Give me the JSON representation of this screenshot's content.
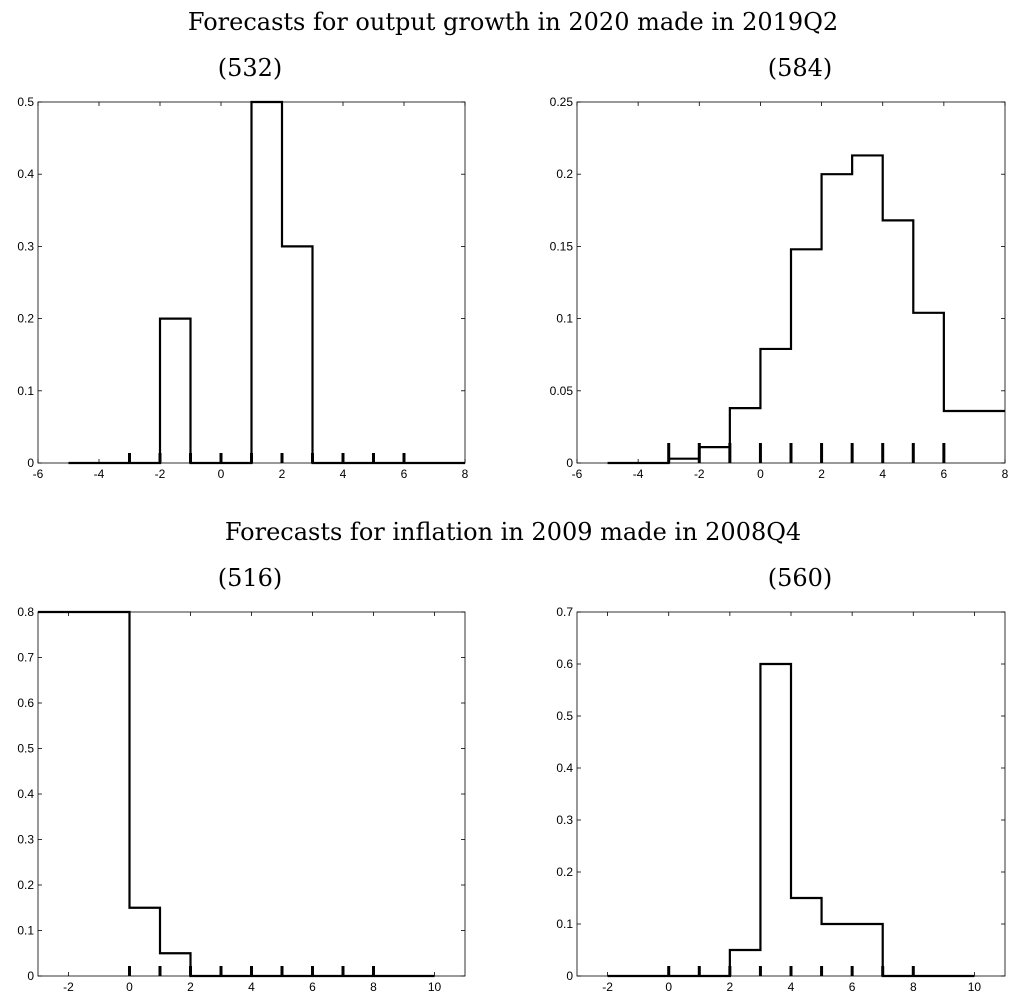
{
  "section_titles": [
    "Forecasts for output growth in 2020 made in 2019Q2",
    "Forecasts for inflation in 2009 made in 2008Q4"
  ],
  "chart_data": [
    {
      "type": "step",
      "panel_label": "(532)",
      "xlim": [
        -6,
        8
      ],
      "ylim": [
        0,
        0.5
      ],
      "xticks": [
        -6,
        -4,
        -2,
        0,
        2,
        4,
        6,
        8
      ],
      "xtick_labels": [
        "-6",
        "-4",
        "-2",
        "0",
        "2",
        "4",
        "6",
        "8"
      ],
      "yticks": [
        0,
        0.1,
        0.2,
        0.3,
        0.4,
        0.5
      ],
      "ytick_labels": [
        "0",
        "0.1",
        "0.2",
        "0.3",
        "0.4",
        "0.5"
      ],
      "bins": [
        {
          "x0": -5,
          "x1": -2,
          "y": 0
        },
        {
          "x0": -2,
          "x1": -1,
          "y": 0.2
        },
        {
          "x0": -1,
          "x1": 1,
          "y": 0
        },
        {
          "x0": 1,
          "x1": 2,
          "y": 0.5
        },
        {
          "x0": 2,
          "x1": 3,
          "y": 0.3
        },
        {
          "x0": 3,
          "x1": 8,
          "y": 0
        }
      ],
      "rug": [
        -3,
        -2,
        -1,
        0,
        1,
        2,
        3,
        4,
        5,
        6
      ]
    },
    {
      "type": "step",
      "panel_label": "(584)",
      "xlim": [
        -6,
        8
      ],
      "ylim": [
        0,
        0.25
      ],
      "xticks": [
        -6,
        -4,
        -2,
        0,
        2,
        4,
        6,
        8
      ],
      "xtick_labels": [
        "-6",
        "-4",
        "-2",
        "0",
        "2",
        "4",
        "6",
        "8"
      ],
      "yticks": [
        0,
        0.05,
        0.1,
        0.15,
        0.2,
        0.25
      ],
      "ytick_labels": [
        "0",
        "0.05",
        "0.1",
        "0.15",
        "0.2",
        "0.25"
      ],
      "bins": [
        {
          "x0": -5,
          "x1": -3,
          "y": 0
        },
        {
          "x0": -3,
          "x1": -2,
          "y": 0.003
        },
        {
          "x0": -2,
          "x1": -1,
          "y": 0.011
        },
        {
          "x0": -1,
          "x1": 0,
          "y": 0.038
        },
        {
          "x0": 0,
          "x1": 1,
          "y": 0.079
        },
        {
          "x0": 1,
          "x1": 2,
          "y": 0.148
        },
        {
          "x0": 2,
          "x1": 3,
          "y": 0.2
        },
        {
          "x0": 3,
          "x1": 4,
          "y": 0.213
        },
        {
          "x0": 4,
          "x1": 5,
          "y": 0.168
        },
        {
          "x0": 5,
          "x1": 6,
          "y": 0.104
        },
        {
          "x0": 6,
          "x1": 8,
          "y": 0.036
        }
      ],
      "rug": [
        -3,
        -2,
        -1,
        0,
        1,
        2,
        3,
        4,
        5,
        6
      ]
    },
    {
      "type": "step",
      "panel_label": "(516)",
      "xlim": [
        -3,
        11
      ],
      "ylim": [
        0,
        0.8
      ],
      "xticks": [
        -2,
        0,
        2,
        4,
        6,
        8,
        10
      ],
      "xtick_labels": [
        "-2",
        "0",
        "2",
        "4",
        "6",
        "8",
        "10"
      ],
      "yticks": [
        0,
        0.1,
        0.2,
        0.3,
        0.4,
        0.5,
        0.6,
        0.7,
        0.8
      ],
      "ytick_labels": [
        "0",
        "0.1",
        "0.2",
        "0.3",
        "0.4",
        "0.5",
        "0.6",
        "0.7",
        "0.8"
      ],
      "bins": [
        {
          "x0": -3,
          "x1": 0,
          "y": 0.8
        },
        {
          "x0": 0,
          "x1": 1,
          "y": 0.15
        },
        {
          "x0": 1,
          "x1": 2,
          "y": 0.05
        },
        {
          "x0": 2,
          "x1": 10,
          "y": 0
        }
      ],
      "rug": [
        0,
        1,
        2,
        3,
        4,
        5,
        6,
        7,
        8
      ]
    },
    {
      "type": "step",
      "panel_label": "(560)",
      "xlim": [
        -3,
        11
      ],
      "ylim": [
        0,
        0.7
      ],
      "xticks": [
        -2,
        0,
        2,
        4,
        6,
        8,
        10
      ],
      "xtick_labels": [
        "-2",
        "0",
        "2",
        "4",
        "6",
        "8",
        "10"
      ],
      "yticks": [
        0,
        0.1,
        0.2,
        0.3,
        0.4,
        0.5,
        0.6,
        0.7
      ],
      "ytick_labels": [
        "0",
        "0.1",
        "0.2",
        "0.3",
        "0.4",
        "0.5",
        "0.6",
        "0.7"
      ],
      "bins": [
        {
          "x0": -2,
          "x1": 2,
          "y": 0
        },
        {
          "x0": 2,
          "x1": 3,
          "y": 0.05
        },
        {
          "x0": 3,
          "x1": 4,
          "y": 0.6
        },
        {
          "x0": 4,
          "x1": 5,
          "y": 0.15
        },
        {
          "x0": 5,
          "x1": 7,
          "y": 0.1
        },
        {
          "x0": 7,
          "x1": 10,
          "y": 0
        }
      ],
      "rug": [
        0,
        1,
        2,
        3,
        4,
        5,
        6,
        7,
        8
      ]
    }
  ]
}
